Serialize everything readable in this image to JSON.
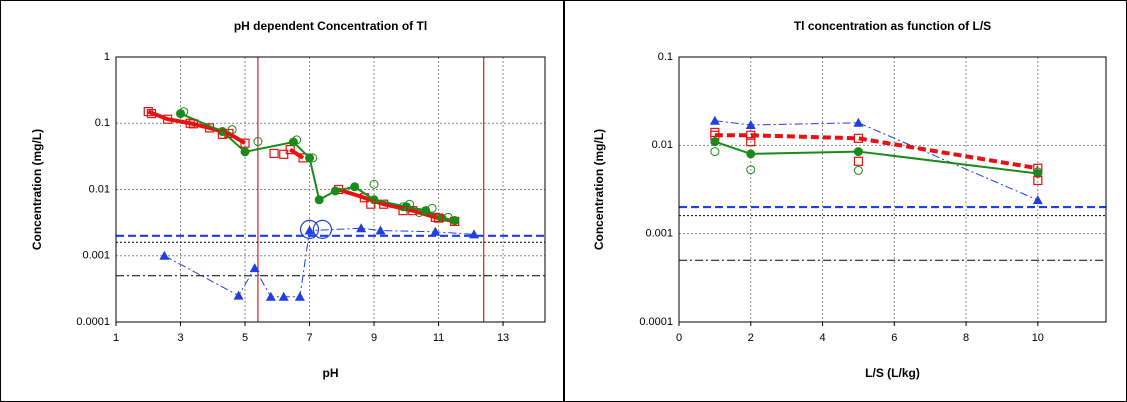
{
  "chart_data": [
    {
      "type": "scatter",
      "title": "pH dependent  Concentration of Tl",
      "x_label": "pH",
      "y_label": "Concentration  (mg/L)",
      "log_y": true,
      "grid": true,
      "xlim": [
        1,
        14.3
      ],
      "xticks": [
        1,
        3,
        5,
        7,
        9,
        11,
        13
      ],
      "ylim": [
        0.0001,
        1
      ],
      "yticks": [
        0.0001,
        0.001,
        0.01,
        0.1,
        1
      ],
      "vlines": [
        5.4,
        12.4
      ],
      "vline_color": "#d62020",
      "reference_lines": [
        {
          "value": 0.002,
          "color": "#1f3fe0",
          "style": "dashed",
          "width": 2.2
        },
        {
          "value": 0.0016,
          "color": "#000000",
          "style": "dotted",
          "width": 1
        },
        {
          "value": 0.0005,
          "color": "#000000",
          "style": "dashdot",
          "width": 1
        }
      ],
      "series": [
        {
          "color": "#e81010",
          "line": "solid",
          "width": 4,
          "marker": "square-open",
          "x": [
            2.0,
            2.6,
            3.3,
            3.9,
            4.5,
            5.0
          ],
          "values": [
            0.15,
            0.115,
            0.1,
            0.085,
            0.07,
            0.05
          ]
        },
        {
          "color": "#e81010",
          "line": "solid",
          "width": 4,
          "marker": "square-open",
          "x": [
            6.4,
            6.8
          ],
          "values": [
            0.04,
            0.03
          ]
        },
        {
          "color": "#e81010",
          "line": "solid",
          "width": 4,
          "marker": "square-open",
          "x": [
            7.9,
            8.7,
            9.3,
            10.2,
            10.9,
            11.5
          ],
          "values": [
            0.01,
            0.0075,
            0.006,
            0.0048,
            0.0038,
            0.0033
          ]
        },
        {
          "color": "#1a8a1a",
          "line": "solid",
          "width": 2,
          "marker": "circle",
          "x": [
            3.0,
            4.3,
            5.0,
            6.5,
            7.0,
            7.3,
            7.8,
            8.4,
            9.0,
            10.0,
            10.6,
            11.1,
            11.5
          ],
          "values": [
            0.14,
            0.075,
            0.037,
            0.052,
            0.03,
            0.007,
            0.0095,
            0.011,
            0.007,
            0.0055,
            0.0048,
            0.0037,
            0.0034
          ]
        },
        {
          "color": "#1a8a1a",
          "line": "none",
          "width": 1,
          "marker": "circle-open",
          "x": [
            3.1,
            4.6,
            5.4,
            6.6,
            7.1,
            9.0,
            9.9,
            10.1,
            10.4,
            10.8,
            11.3
          ],
          "values": [
            0.15,
            0.08,
            0.053,
            0.056,
            0.03,
            0.012,
            0.0055,
            0.006,
            0.0045,
            0.0052,
            0.0038
          ]
        },
        {
          "color": "#e81010",
          "line": "none",
          "width": 1,
          "marker": "square-open",
          "x": [
            2.1,
            3.4,
            4.3,
            5.9,
            6.2,
            8.9,
            9.9,
            11.0
          ],
          "values": [
            0.14,
            0.098,
            0.068,
            0.035,
            0.034,
            0.006,
            0.0048,
            0.0037
          ]
        },
        {
          "color": "#1f3fe0",
          "line": "dashdot",
          "width": 1,
          "marker": "triangle",
          "x": [
            2.5,
            4.8,
            5.3,
            5.8,
            6.2,
            6.7,
            7.0,
            8.6,
            9.2,
            10.9,
            12.1
          ],
          "values": [
            0.001,
            0.00025,
            0.00065,
            0.00024,
            0.00024,
            0.00024,
            0.0024,
            0.0026,
            0.0024,
            0.0023,
            0.0021
          ]
        },
        {
          "color": "#1f3fe0",
          "line": "none",
          "width": 1,
          "marker": "circle-big",
          "x": [
            7.0,
            7.4
          ],
          "values": [
            0.0025,
            0.0025
          ]
        }
      ]
    },
    {
      "type": "scatter",
      "title": "Tl concentration  as function of L/S",
      "x_label": "L/S (L/kg)",
      "y_label": "Concentration  (mg/L)",
      "log_y": true,
      "grid": true,
      "xlim": [
        0,
        11.9
      ],
      "xticks": [
        0,
        2,
        4,
        6,
        8,
        10
      ],
      "ylim": [
        0.0001,
        0.1
      ],
      "yticks": [
        0.0001,
        0.001,
        0.01,
        0.1
      ],
      "reference_lines": [
        {
          "value": 0.002,
          "color": "#1f3fe0",
          "style": "dashed",
          "width": 2.2
        },
        {
          "value": 0.0016,
          "color": "#000000",
          "style": "dotted",
          "width": 1
        },
        {
          "value": 0.0005,
          "color": "#000000",
          "style": "dashdot",
          "width": 1
        }
      ],
      "series": [
        {
          "color": "#1f3fe0",
          "line": "dashdot",
          "width": 1,
          "marker": "triangle",
          "x": [
            1,
            2,
            5,
            10
          ],
          "values": [
            0.019,
            0.017,
            0.018,
            0.0024
          ]
        },
        {
          "color": "#e81010",
          "line": "dashed",
          "width": 4,
          "marker": "square-open",
          "x": [
            1,
            2,
            5,
            10
          ],
          "values": [
            0.013,
            0.013,
            0.012,
            0.0055
          ]
        },
        {
          "color": "#1a8a1a",
          "line": "solid",
          "width": 2,
          "marker": "circle",
          "x": [
            1,
            2,
            5,
            10
          ],
          "values": [
            0.011,
            0.008,
            0.0085,
            0.0048
          ]
        },
        {
          "color": "#1a8a1a",
          "line": "none",
          "width": 1,
          "marker": "circle-open",
          "x": [
            1,
            2,
            5,
            10
          ],
          "values": [
            0.0085,
            0.0053,
            0.0052,
            0.005
          ]
        },
        {
          "color": "#e81010",
          "line": "none",
          "width": 1,
          "marker": "square-open",
          "x": [
            1,
            2,
            5,
            10
          ],
          "values": [
            0.014,
            0.011,
            0.0066,
            0.004
          ]
        }
      ]
    }
  ]
}
